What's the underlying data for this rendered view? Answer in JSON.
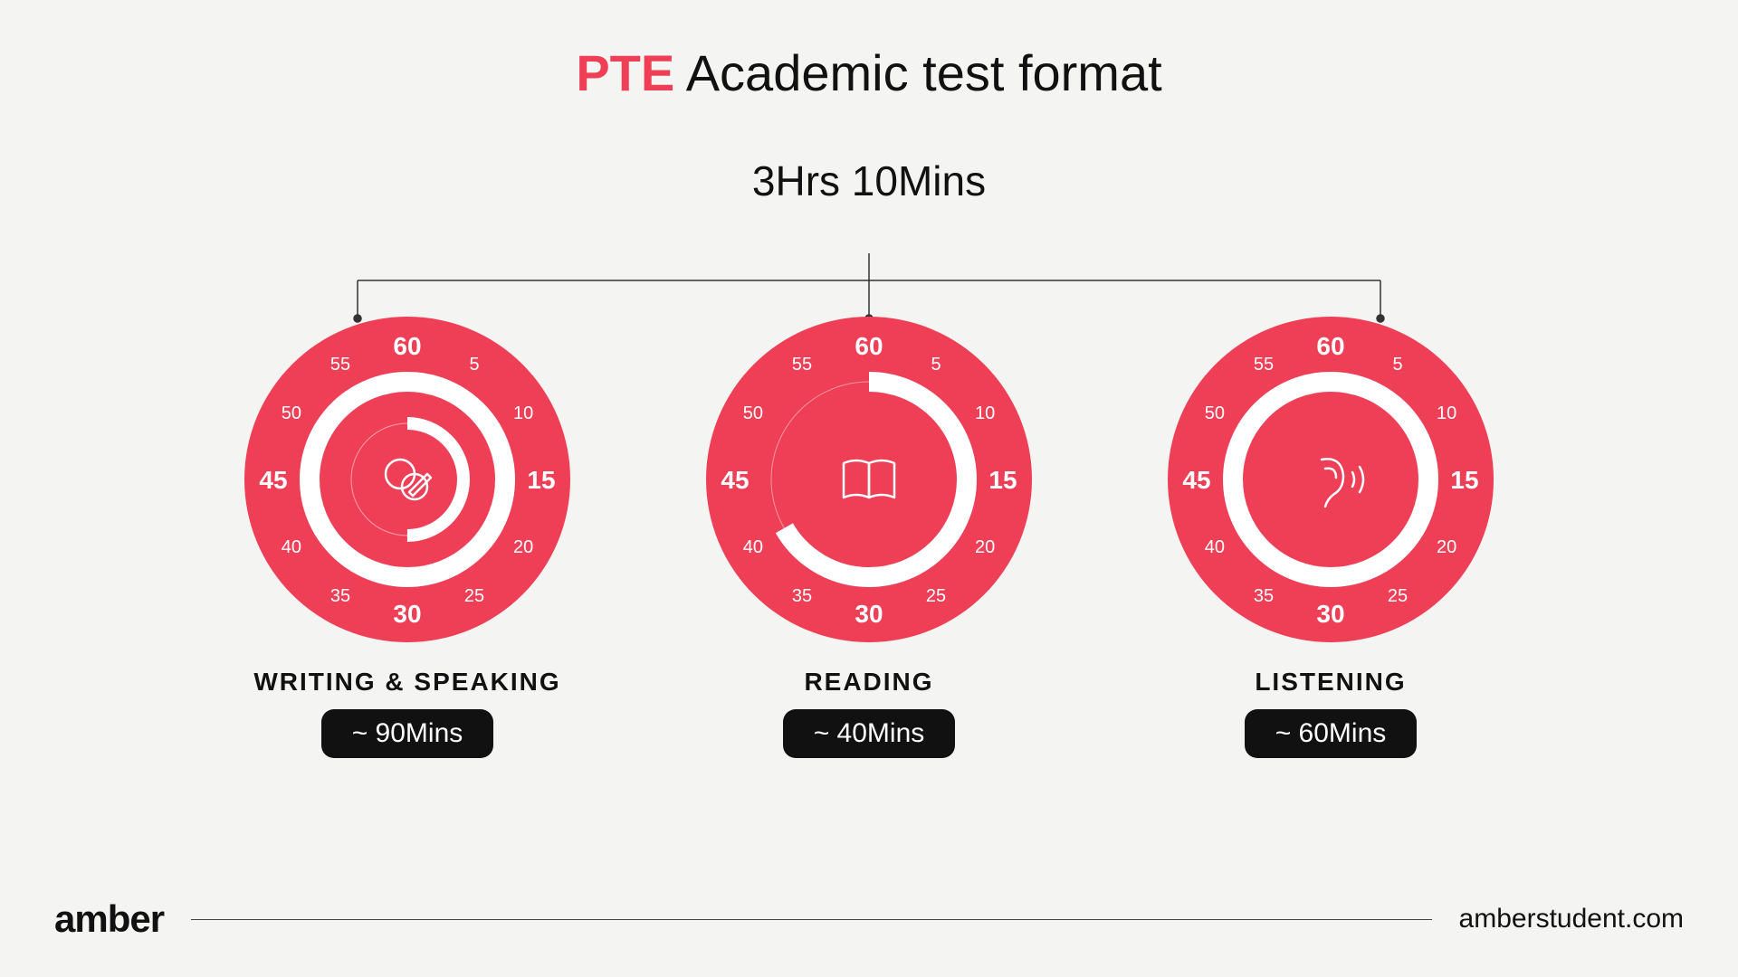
{
  "colors": {
    "accent": "#ef3f57",
    "dial_fill": "#ef3f57",
    "ring_track": "#ffffff",
    "text_light": "#ffffff",
    "text_dark": "#111111",
    "badge_bg": "#111111",
    "badge_text": "#ffffff",
    "background": "#f4f4f2",
    "connector": "#333333"
  },
  "title": {
    "accent": "PTE",
    "rest": " Academic test format"
  },
  "subtitle": "3Hrs 10Mins",
  "dial": {
    "radius": 180,
    "ring_outer_r": 108,
    "ring_width": 22,
    "tick_labels": [
      {
        "v": "60",
        "angle": 0,
        "bold": true
      },
      {
        "v": "5",
        "angle": 30,
        "bold": false
      },
      {
        "v": "10",
        "angle": 60,
        "bold": false
      },
      {
        "v": "15",
        "angle": 90,
        "bold": true
      },
      {
        "v": "20",
        "angle": 120,
        "bold": false
      },
      {
        "v": "25",
        "angle": 150,
        "bold": false
      },
      {
        "v": "30",
        "angle": 180,
        "bold": true
      },
      {
        "v": "35",
        "angle": 210,
        "bold": false
      },
      {
        "v": "40",
        "angle": 240,
        "bold": false
      },
      {
        "v": "45",
        "angle": 270,
        "bold": true
      },
      {
        "v": "50",
        "angle": 300,
        "bold": false
      },
      {
        "v": "55",
        "angle": 330,
        "bold": false
      }
    ],
    "tick_radius": 148,
    "tick_font_bold": 28,
    "tick_font_small": 20
  },
  "sections": [
    {
      "label": "WRITING & SPEAKING",
      "badge": "~  90Mins",
      "minutes": 90,
      "icon": "chat-pencil",
      "inner_ring": true
    },
    {
      "label": "READING",
      "badge": "~ 40Mins",
      "minutes": 40,
      "icon": "book",
      "inner_ring": false
    },
    {
      "label": "LISTENING",
      "badge": "~ 60Mins",
      "minutes": 60,
      "icon": "ear",
      "inner_ring": false
    }
  ],
  "footer": {
    "brand": "amber",
    "url": "amberstudent.com"
  }
}
